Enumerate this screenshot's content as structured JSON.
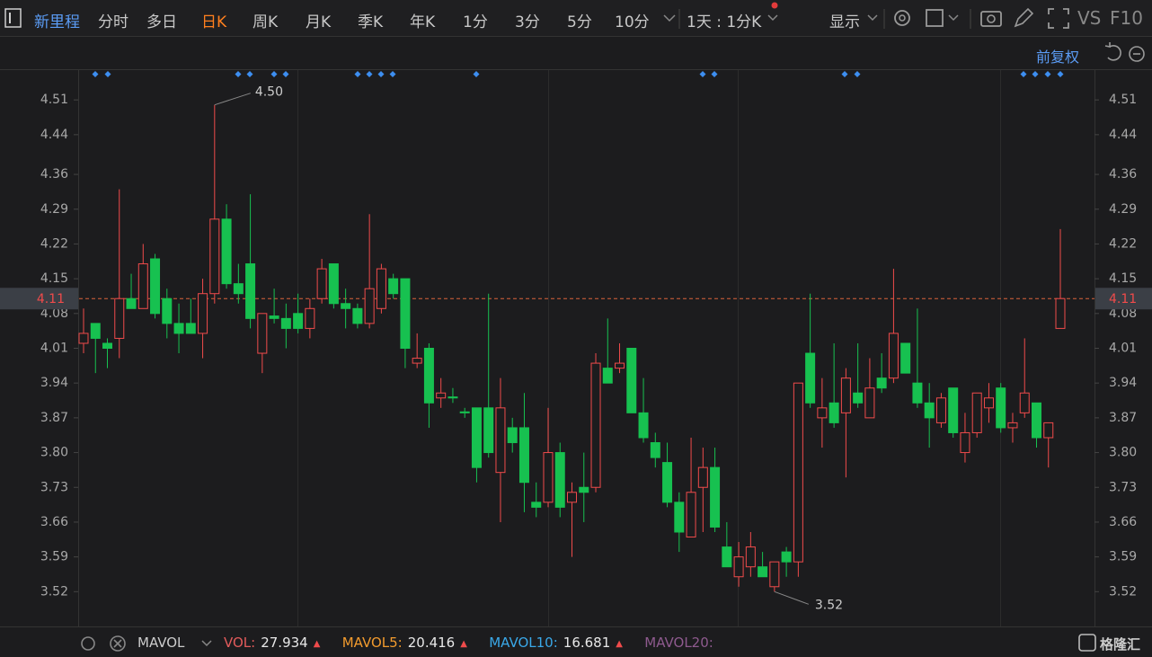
{
  "toolbar": {
    "name": "新里程",
    "tabs": [
      "分时",
      "多日",
      "日K",
      "周K",
      "月K",
      "季K",
      "年K",
      "1分",
      "3分",
      "5分",
      "10分"
    ],
    "period": "1天 : 1分K",
    "display": "显示",
    "vs": "VS",
    "f10": "F10"
  },
  "adjust": "前复权",
  "chart_data": {
    "type": "candlestick",
    "up_color": "#f04b4b",
    "down_color": "#17c150",
    "series": {
      "open": [
        4.02,
        4.06,
        4.02,
        4.03,
        4.11,
        4.09,
        4.19,
        4.11,
        4.06,
        4.06,
        4.04,
        4.12,
        4.27,
        4.14,
        4.18,
        4.0,
        4.075,
        4.07,
        4.08,
        4.05,
        4.11,
        4.18,
        4.1,
        4.09,
        4.06,
        4.09,
        4.15,
        4.15,
        3.98,
        4.01,
        3.91,
        3.912,
        3.882,
        3.89,
        3.89,
        3.76,
        3.85,
        3.85,
        3.7,
        3.7,
        3.8,
        3.7,
        3.73,
        3.73,
        3.97,
        3.97,
        4.01,
        3.88,
        3.82,
        3.78,
        3.7,
        3.63,
        3.73,
        3.77,
        3.61,
        3.55,
        3.57,
        3.57,
        3.53,
        3.6,
        3.58,
        4.0,
        3.87,
        3.9,
        3.88,
        3.92,
        3.87,
        3.95,
        3.95,
        4.02,
        3.94,
        3.9,
        3.86,
        3.93,
        3.8,
        3.84,
        3.89,
        3.93,
        3.85,
        3.88,
        3.9,
        3.83,
        4.05
      ],
      "high": [
        4.09,
        4.06,
        4.03,
        4.33,
        4.16,
        4.22,
        4.2,
        4.13,
        4.1,
        4.11,
        4.15,
        4.5,
        4.3,
        4.18,
        4.32,
        4.08,
        4.13,
        4.1,
        4.12,
        4.11,
        4.19,
        4.18,
        4.13,
        4.1,
        4.28,
        4.18,
        4.16,
        4.15,
        4.04,
        4.02,
        3.95,
        3.93,
        3.89,
        3.89,
        4.12,
        3.95,
        3.87,
        3.92,
        3.74,
        3.89,
        3.82,
        3.74,
        3.8,
        4.0,
        4.07,
        4.02,
        4.01,
        3.95,
        3.84,
        3.82,
        3.72,
        3.83,
        3.81,
        3.81,
        3.66,
        3.62,
        3.64,
        3.6,
        3.58,
        3.61,
        3.94,
        4.12,
        3.95,
        4.02,
        3.97,
        4.02,
        3.99,
        4.0,
        4.17,
        4.02,
        4.09,
        3.94,
        3.92,
        3.93,
        3.88,
        3.92,
        3.94,
        3.94,
        3.88,
        4.03,
        3.9,
        3.86,
        4.25
      ],
      "low": [
        4.0,
        3.96,
        3.97,
        3.99,
        4.09,
        4.09,
        4.07,
        4.03,
        4.0,
        4.04,
        3.99,
        4.1,
        4.13,
        4.1,
        4.05,
        3.96,
        4.06,
        4.01,
        4.04,
        4.03,
        4.1,
        4.09,
        4.05,
        4.05,
        4.05,
        4.08,
        4.11,
        3.97,
        3.97,
        3.85,
        3.89,
        3.9,
        3.87,
        3.74,
        3.79,
        3.66,
        3.8,
        3.68,
        3.67,
        3.69,
        3.67,
        3.59,
        3.66,
        3.72,
        3.94,
        3.96,
        3.88,
        3.82,
        3.77,
        3.69,
        3.6,
        3.63,
        3.64,
        3.64,
        3.57,
        3.53,
        3.55,
        3.55,
        3.52,
        3.55,
        3.55,
        3.89,
        3.81,
        3.85,
        3.75,
        3.89,
        3.87,
        3.92,
        3.94,
        3.96,
        3.89,
        3.81,
        3.85,
        3.83,
        3.78,
        3.83,
        3.86,
        3.84,
        3.82,
        3.87,
        3.81,
        3.77,
        4.05
      ],
      "close": [
        4.04,
        4.03,
        4.01,
        4.11,
        4.09,
        4.18,
        4.08,
        4.06,
        4.04,
        4.04,
        4.12,
        4.27,
        4.14,
        4.12,
        4.07,
        4.08,
        4.07,
        4.05,
        4.05,
        4.09,
        4.17,
        4.1,
        4.09,
        4.06,
        4.13,
        4.17,
        4.12,
        4.01,
        3.99,
        3.9,
        3.92,
        3.91,
        3.88,
        3.77,
        3.8,
        3.89,
        3.82,
        3.74,
        3.69,
        3.8,
        3.69,
        3.72,
        3.72,
        3.98,
        3.94,
        3.98,
        3.88,
        3.83,
        3.79,
        3.7,
        3.64,
        3.72,
        3.77,
        3.65,
        3.57,
        3.59,
        3.61,
        3.55,
        3.58,
        3.58,
        3.94,
        3.9,
        3.89,
        3.86,
        3.95,
        3.9,
        3.93,
        3.93,
        4.04,
        3.96,
        3.9,
        3.87,
        3.91,
        3.84,
        3.84,
        3.92,
        3.91,
        3.85,
        3.86,
        3.92,
        3.83,
        3.86,
        4.11
      ]
    },
    "ylim": [
      3.45,
      4.57
    ],
    "yticks": [
      4.51,
      4.44,
      4.36,
      4.29,
      4.22,
      4.15,
      4.08,
      4.01,
      3.94,
      3.87,
      {
        "value": 3.8,
        "label": "3.80"
      },
      3.73,
      3.66,
      3.59,
      3.52
    ],
    "last_price": 4.11,
    "high_label": {
      "value": 4.5,
      "label": "4.50"
    },
    "low_label": 3.52
  },
  "volume_bar": {
    "indicator": "MAVOL",
    "items": [
      {
        "name": "VOL:",
        "value": 27.934,
        "color": "#e25b5b"
      },
      {
        "name": "MAVOL5:",
        "value": 20.416,
        "color": "#f29b2e"
      },
      {
        "name": "MAVOL10:",
        "value": 16.681,
        "color": "#3aa8e8"
      },
      {
        "name": "MAVOL20:",
        "color": "#8e5a8e"
      }
    ]
  },
  "logo": "格隆汇"
}
